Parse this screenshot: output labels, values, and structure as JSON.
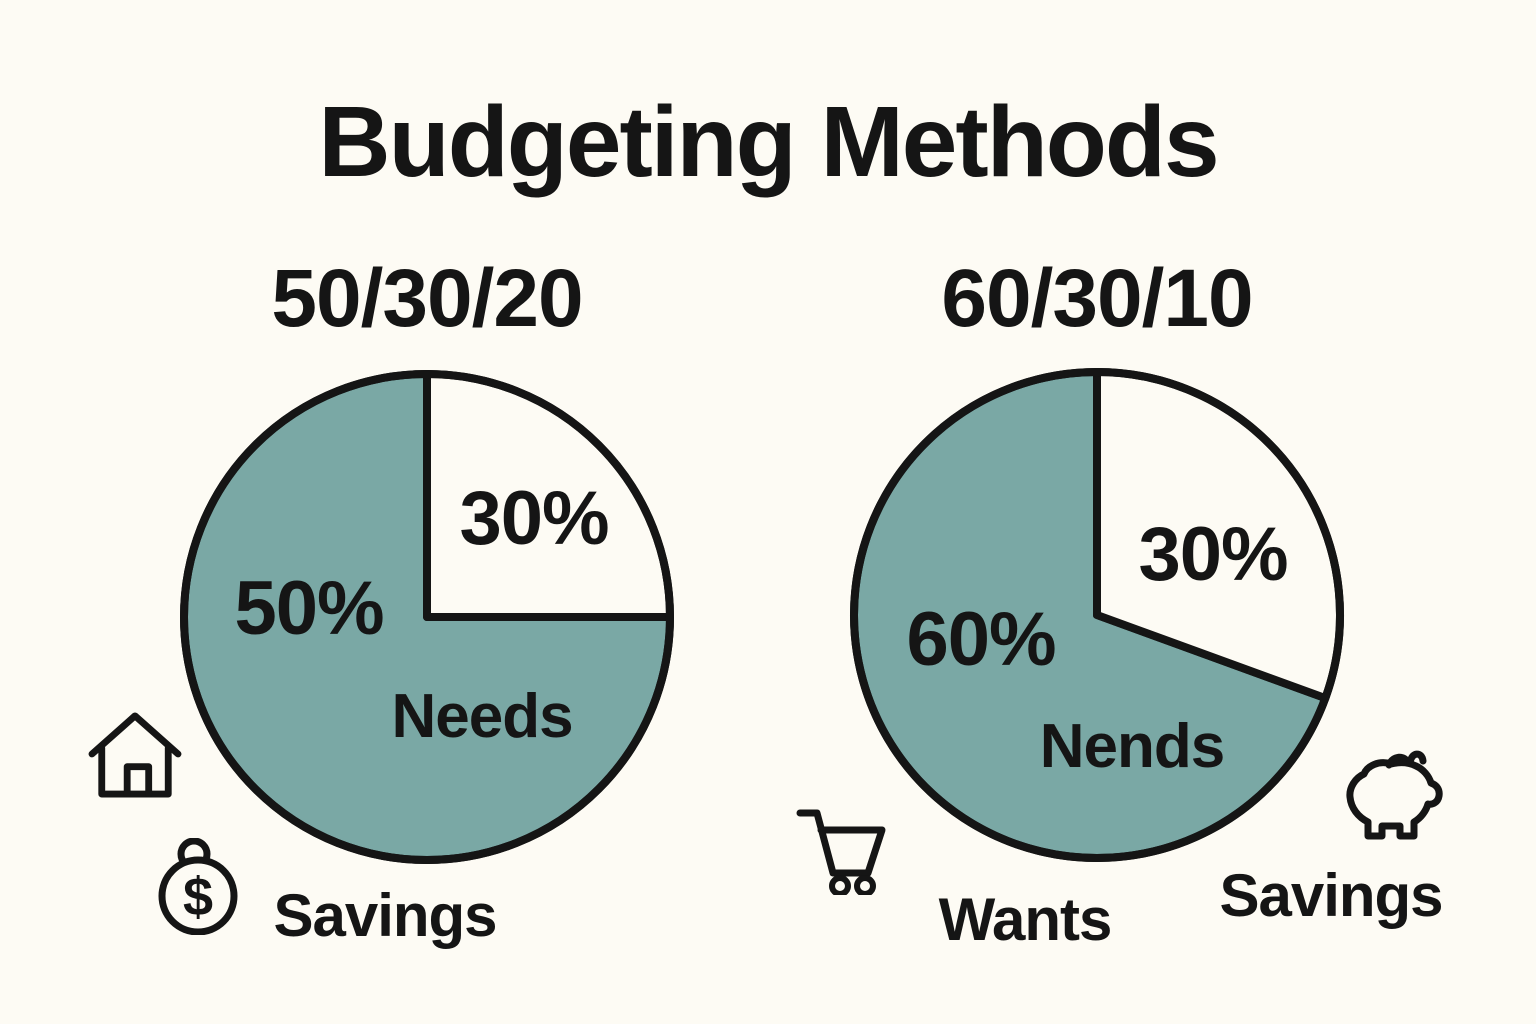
{
  "title": "Budgeting Methods",
  "colors": {
    "ink": "#151515",
    "teal": "#7AA8A5",
    "paper": "#FDFBF4"
  },
  "chart_data": [
    {
      "type": "pie",
      "subtitle": "50/30/20",
      "legend_position": "inside",
      "segments": [
        {
          "name": "needs-slice",
          "color_key": "teal",
          "start_deg": 90,
          "end_deg": 360,
          "pct_label": "50%",
          "name_label": "Needs",
          "value": 50
        },
        {
          "name": "wants-slice",
          "color_key": "paper",
          "start_deg": 0,
          "end_deg": 90,
          "pct_label": "30%",
          "value": 30
        }
      ]
    },
    {
      "type": "pie",
      "subtitle": "60/30/10",
      "legend_position": "inside",
      "segments": [
        {
          "name": "needs-slice",
          "color_key": "teal",
          "start_deg": 110,
          "end_deg": 360,
          "pct_label": "60%",
          "name_label": "Nends",
          "value": 60
        },
        {
          "name": "wants-slice",
          "color_key": "paper",
          "start_deg": 0,
          "end_deg": 110,
          "pct_label": "30%",
          "value": 30
        }
      ]
    }
  ],
  "captions": {
    "savings_left": "Savings",
    "wants": "Wants",
    "savings_right": "Savings"
  },
  "coin_symbol": "$"
}
